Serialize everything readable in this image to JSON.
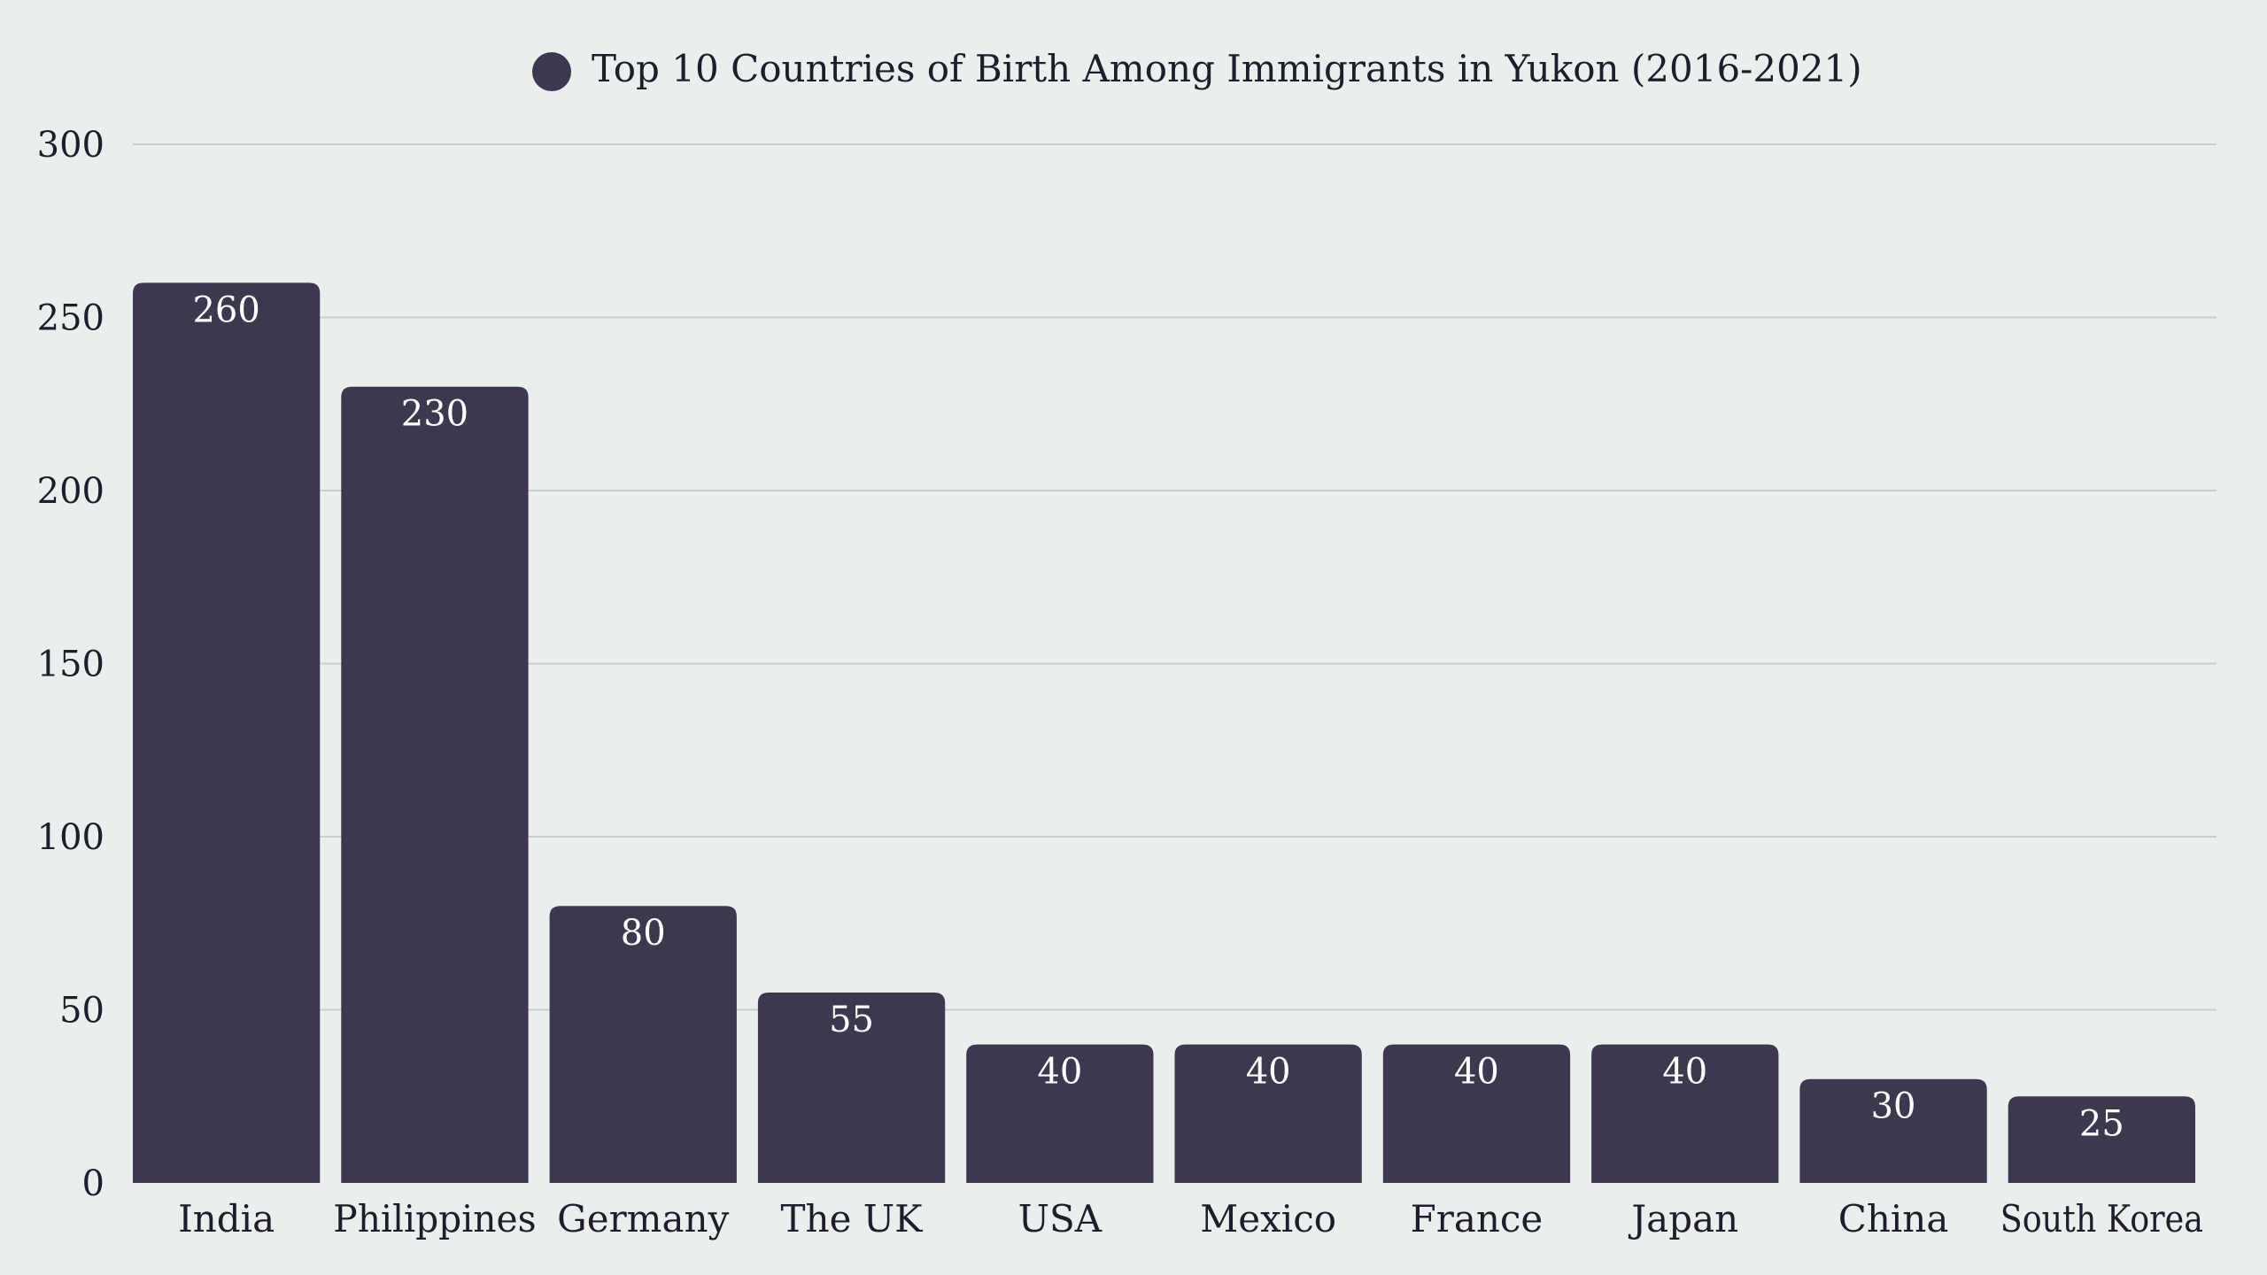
{
  "chart_data": {
    "type": "bar",
    "title": "Top 10 Countries of Birth Among Immigrants in Yukon (2016-2021)",
    "legend": {
      "label": "Top 10 Countries of Birth Among Immigrants in Yukon (2016-2021)",
      "placement": "top-center"
    },
    "categories": [
      "India",
      "Philippines",
      "Germany",
      "The UK",
      "USA",
      "Mexico",
      "France",
      "Japan",
      "China",
      "South Korea"
    ],
    "values": [
      260,
      230,
      80,
      55,
      40,
      40,
      40,
      40,
      30,
      25
    ],
    "xlabel": "",
    "ylabel": "",
    "ylim": [
      0,
      300
    ],
    "yticks": [
      "0",
      "50",
      "100",
      "150",
      "200",
      "250",
      "300"
    ],
    "grid": true,
    "data_labels": true,
    "colors": {
      "bar": "#3d384f",
      "background": "#eaeeed",
      "grid": "#c9cfcd",
      "text": "#1f1d2b",
      "data_label": "#ffffff"
    }
  }
}
